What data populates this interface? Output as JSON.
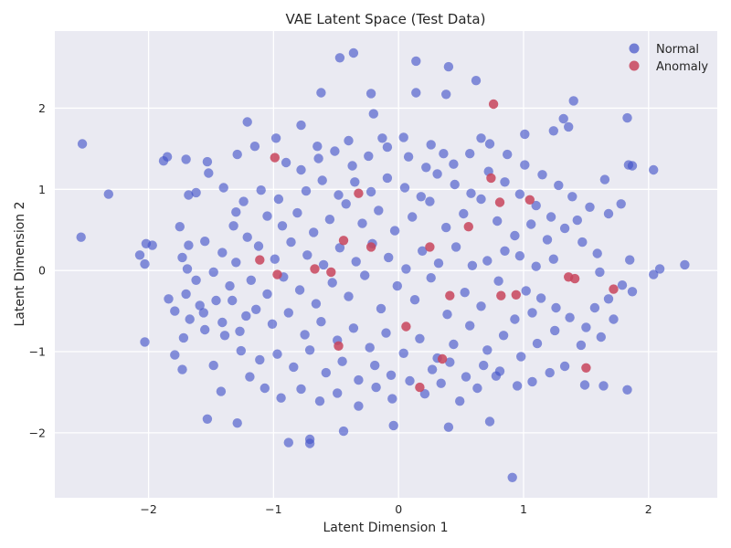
{
  "chart_data": {
    "type": "scatter",
    "title": "VAE Latent Space (Test Data)",
    "xlabel": "Latent Dimension 1",
    "ylabel": "Latent Dimension 2",
    "xlim": [
      -2.75,
      2.55
    ],
    "ylim": [
      -2.8,
      2.95
    ],
    "xticks": [
      -2,
      -1,
      0,
      1,
      2
    ],
    "yticks": [
      -2,
      -1,
      0,
      1,
      2
    ],
    "xtick_labels": [
      "−2",
      "−1",
      "0",
      "1",
      "2"
    ],
    "ytick_labels": [
      "−2",
      "−1",
      "0",
      "1",
      "2"
    ],
    "grid": true,
    "legend_position": "top-right",
    "background_color": "#eaeaf2",
    "series": [
      {
        "name": "Normal",
        "color": "#4050c8",
        "points": [
          [
            -0.47,
            2.62
          ],
          [
            -0.36,
            2.68
          ],
          [
            0.14,
            2.58
          ],
          [
            0.4,
            2.51
          ],
          [
            0.62,
            2.34
          ],
          [
            -0.62,
            2.19
          ],
          [
            -0.22,
            2.18
          ],
          [
            0.14,
            2.19
          ],
          [
            0.38,
            2.17
          ],
          [
            -0.2,
            1.93
          ],
          [
            -2.53,
            1.56
          ],
          [
            -1.21,
            1.83
          ],
          [
            -0.78,
            1.79
          ],
          [
            1.83,
            1.88
          ],
          [
            1.32,
            1.87
          ],
          [
            1.4,
            2.09
          ],
          [
            -2.32,
            0.94
          ],
          [
            -2.54,
            0.41
          ],
          [
            -2.02,
            0.33
          ],
          [
            -1.97,
            0.31
          ],
          [
            -2.07,
            0.19
          ],
          [
            -2.03,
            0.08
          ],
          [
            -2.03,
            -0.88
          ],
          [
            -1.79,
            -1.04
          ],
          [
            -1.73,
            -1.22
          ],
          [
            -1.53,
            -1.83
          ],
          [
            -1.29,
            -1.88
          ],
          [
            -0.88,
            -2.12
          ],
          [
            -0.71,
            -2.08
          ],
          [
            -0.71,
            -2.13
          ],
          [
            -0.44,
            -1.98
          ],
          [
            -0.04,
            -1.91
          ],
          [
            0.4,
            -1.93
          ],
          [
            0.91,
            -2.55
          ],
          [
            0.73,
            -1.86
          ],
          [
            1.83,
            -1.47
          ],
          [
            1.64,
            -1.42
          ],
          [
            1.49,
            -1.41
          ],
          [
            2.29,
            0.07
          ],
          [
            2.09,
            0.02
          ],
          [
            2.04,
            -0.05
          ],
          [
            1.87,
            -0.26
          ],
          [
            2.04,
            1.24
          ],
          [
            1.84,
            1.3
          ],
          [
            1.87,
            1.29
          ],
          [
            1.65,
            1.12
          ],
          [
            1.78,
            0.82
          ],
          [
            1.68,
            0.7
          ],
          [
            1.85,
            0.13
          ],
          [
            1.61,
            -0.02
          ],
          [
            -1.85,
            1.4
          ],
          [
            -1.88,
            1.35
          ],
          [
            -1.7,
            1.37
          ],
          [
            -1.53,
            1.34
          ],
          [
            -1.29,
            1.43
          ],
          [
            -1.15,
            1.53
          ],
          [
            -0.98,
            1.63
          ],
          [
            -0.65,
            1.53
          ],
          [
            -0.4,
            1.6
          ],
          [
            -0.13,
            1.63
          ],
          [
            0.04,
            1.64
          ],
          [
            0.26,
            1.55
          ],
          [
            0.66,
            1.63
          ],
          [
            1.01,
            1.68
          ],
          [
            1.24,
            1.72
          ],
          [
            1.36,
            1.77
          ],
          [
            -1.68,
            0.93
          ],
          [
            -1.62,
            0.96
          ],
          [
            -1.52,
            1.2
          ],
          [
            -1.4,
            1.02
          ],
          [
            -1.24,
            0.85
          ],
          [
            -1.1,
            0.99
          ],
          [
            -0.96,
            0.88
          ],
          [
            -1.75,
            0.54
          ],
          [
            -1.68,
            0.31
          ],
          [
            -1.55,
            0.36
          ],
          [
            -1.41,
            0.22
          ],
          [
            -1.3,
            0.1
          ],
          [
            -1.73,
            0.16
          ],
          [
            -1.69,
            0.02
          ],
          [
            -1.62,
            -0.12
          ],
          [
            -1.48,
            -0.02
          ],
          [
            -1.35,
            -0.19
          ],
          [
            -1.84,
            -0.35
          ],
          [
            -1.79,
            -0.5
          ],
          [
            -1.7,
            -0.29
          ],
          [
            -1.59,
            -0.43
          ],
          [
            -1.46,
            -0.37
          ],
          [
            -1.67,
            -0.6
          ],
          [
            -1.56,
            -0.52
          ],
          [
            -1.41,
            -0.64
          ],
          [
            -1.27,
            -0.75
          ],
          [
            -1.72,
            -0.83
          ],
          [
            -1.55,
            -0.73
          ],
          [
            -1.39,
            -0.8
          ],
          [
            -1.26,
            -0.99
          ],
          [
            -1.11,
            -1.1
          ],
          [
            -1.48,
            -1.17
          ],
          [
            -1.42,
            -1.49
          ],
          [
            -1.19,
            -1.31
          ],
          [
            -1.07,
            -1.45
          ],
          [
            -0.94,
            -1.57
          ],
          [
            -0.78,
            -1.46
          ],
          [
            -0.63,
            -1.61
          ],
          [
            -0.49,
            -1.51
          ],
          [
            -0.32,
            -1.67
          ],
          [
            -0.18,
            -1.44
          ],
          [
            -0.05,
            -1.58
          ],
          [
            0.09,
            -1.36
          ],
          [
            0.21,
            -1.52
          ],
          [
            0.34,
            -1.39
          ],
          [
            0.49,
            -1.61
          ],
          [
            0.63,
            -1.45
          ],
          [
            0.78,
            -1.3
          ],
          [
            0.95,
            -1.42
          ],
          [
            1.07,
            -1.37
          ],
          [
            1.21,
            -1.26
          ],
          [
            1.33,
            -1.18
          ],
          [
            1.46,
            -0.92
          ],
          [
            1.62,
            -0.82
          ],
          [
            1.5,
            -0.7
          ],
          [
            1.37,
            -0.58
          ],
          [
            1.26,
            -0.46
          ],
          [
            1.14,
            -0.34
          ],
          [
            1.02,
            -0.25
          ],
          [
            1.57,
            -0.46
          ],
          [
            1.68,
            -0.35
          ],
          [
            1.79,
            -0.18
          ],
          [
            1.72,
            -0.6
          ],
          [
            1.59,
            0.21
          ],
          [
            1.47,
            0.35
          ],
          [
            1.33,
            0.52
          ],
          [
            1.22,
            0.66
          ],
          [
            1.1,
            0.8
          ],
          [
            0.97,
            0.94
          ],
          [
            1.43,
            0.62
          ],
          [
            1.53,
            0.78
          ],
          [
            1.39,
            0.91
          ],
          [
            1.28,
            1.05
          ],
          [
            1.15,
            1.18
          ],
          [
            1.01,
            1.3
          ],
          [
            0.87,
            1.43
          ],
          [
            0.73,
            1.56
          ],
          [
            0.57,
            1.44
          ],
          [
            0.44,
            1.31
          ],
          [
            -0.9,
            1.33
          ],
          [
            -0.78,
            1.24
          ],
          [
            -0.64,
            1.38
          ],
          [
            -0.51,
            1.47
          ],
          [
            -0.37,
            1.29
          ],
          [
            -0.24,
            1.41
          ],
          [
            -0.09,
            1.52
          ],
          [
            0.08,
            1.4
          ],
          [
            0.22,
            1.27
          ],
          [
            0.36,
            1.44
          ],
          [
            -1.05,
            0.67
          ],
          [
            -0.93,
            0.55
          ],
          [
            -0.81,
            0.71
          ],
          [
            -0.68,
            0.47
          ],
          [
            -0.55,
            0.63
          ],
          [
            -0.42,
            0.82
          ],
          [
            -0.29,
            0.58
          ],
          [
            -0.16,
            0.74
          ],
          [
            -0.03,
            0.49
          ],
          [
            0.11,
            0.66
          ],
          [
            0.25,
            0.85
          ],
          [
            0.38,
            0.53
          ],
          [
            0.52,
            0.7
          ],
          [
            0.66,
            0.88
          ],
          [
            0.79,
            0.61
          ],
          [
            0.93,
            0.43
          ],
          [
            1.06,
            0.57
          ],
          [
            1.19,
            0.38
          ],
          [
            0.85,
            0.24
          ],
          [
            0.71,
            0.12
          ],
          [
            -1.12,
            0.3
          ],
          [
            -0.99,
            0.14
          ],
          [
            -0.86,
            0.35
          ],
          [
            -0.73,
            0.19
          ],
          [
            -0.6,
            0.07
          ],
          [
            -0.47,
            0.28
          ],
          [
            -0.34,
            0.11
          ],
          [
            -0.21,
            0.33
          ],
          [
            -0.08,
            0.16
          ],
          [
            0.06,
            0.02
          ],
          [
            0.19,
            0.24
          ],
          [
            0.32,
            0.09
          ],
          [
            0.46,
            0.29
          ],
          [
            0.59,
            0.06
          ],
          [
            0.97,
            0.18
          ],
          [
            1.1,
            0.05
          ],
          [
            1.24,
            0.14
          ],
          [
            -1.18,
            -0.12
          ],
          [
            -1.05,
            -0.29
          ],
          [
            -0.92,
            -0.08
          ],
          [
            -0.79,
            -0.24
          ],
          [
            -0.66,
            -0.41
          ],
          [
            -0.53,
            -0.15
          ],
          [
            -0.4,
            -0.32
          ],
          [
            -0.27,
            -0.06
          ],
          [
            -0.14,
            -0.47
          ],
          [
            -0.01,
            -0.19
          ],
          [
            0.13,
            -0.36
          ],
          [
            0.26,
            -0.09
          ],
          [
            0.39,
            -0.54
          ],
          [
            0.53,
            -0.27
          ],
          [
            0.66,
            -0.44
          ],
          [
            0.8,
            -0.13
          ],
          [
            0.93,
            -0.6
          ],
          [
            1.07,
            -0.52
          ],
          [
            -1.14,
            -0.48
          ],
          [
            -1.01,
            -0.66
          ],
          [
            -0.88,
            -0.52
          ],
          [
            -0.75,
            -0.79
          ],
          [
            -0.62,
            -0.63
          ],
          [
            -0.49,
            -0.86
          ],
          [
            -0.36,
            -0.71
          ],
          [
            -0.23,
            -0.95
          ],
          [
            -0.1,
            -0.77
          ],
          [
            0.04,
            -1.02
          ],
          [
            0.17,
            -0.84
          ],
          [
            0.31,
            -1.08
          ],
          [
            0.44,
            -0.91
          ],
          [
            0.57,
            -0.68
          ],
          [
            0.71,
            -0.98
          ],
          [
            0.84,
            -0.8
          ],
          [
            0.98,
            -1.06
          ],
          [
            1.11,
            -0.9
          ],
          [
            1.25,
            -0.74
          ],
          [
            -0.97,
            -1.03
          ],
          [
            -0.84,
            -1.19
          ],
          [
            -0.71,
            -0.98
          ],
          [
            -0.58,
            -1.26
          ],
          [
            -0.45,
            -1.12
          ],
          [
            -0.32,
            -1.35
          ],
          [
            -0.19,
            -1.17
          ],
          [
            -0.06,
            -1.29
          ],
          [
            0.27,
            -1.22
          ],
          [
            0.41,
            -1.13
          ],
          [
            0.54,
            -1.31
          ],
          [
            0.68,
            -1.17
          ],
          [
            0.81,
            -1.24
          ],
          [
            -0.35,
            1.09
          ],
          [
            -0.22,
            0.97
          ],
          [
            -0.09,
            1.14
          ],
          [
            0.05,
            1.02
          ],
          [
            0.18,
            0.91
          ],
          [
            0.31,
            1.19
          ],
          [
            0.45,
            1.06
          ],
          [
            0.58,
            0.95
          ],
          [
            0.72,
            1.22
          ],
          [
            0.85,
            1.09
          ],
          [
            -0.74,
            0.98
          ],
          [
            -0.61,
            1.11
          ],
          [
            -0.48,
            0.93
          ],
          [
            -1.32,
            0.55
          ],
          [
            -1.21,
            0.41
          ],
          [
            -1.33,
            -0.37
          ],
          [
            -1.22,
            -0.56
          ],
          [
            -1.3,
            0.72
          ]
        ]
      },
      {
        "name": "Anomaly",
        "color": "#c8445c",
        "points": [
          [
            0.76,
            2.05
          ],
          [
            -0.99,
            1.39
          ],
          [
            0.74,
            1.14
          ],
          [
            1.05,
            0.87
          ],
          [
            -1.11,
            0.13
          ],
          [
            0.81,
            0.84
          ],
          [
            -0.97,
            -0.05
          ],
          [
            -0.44,
            0.37
          ],
          [
            -0.22,
            0.29
          ],
          [
            0.25,
            0.29
          ],
          [
            0.82,
            -0.31
          ],
          [
            1.36,
            -0.08
          ],
          [
            1.41,
            -0.1
          ],
          [
            1.72,
            -0.23
          ],
          [
            1.5,
            -1.2
          ],
          [
            0.17,
            -1.44
          ],
          [
            0.35,
            -1.09
          ],
          [
            -0.48,
            -0.93
          ],
          [
            0.06,
            -0.69
          ],
          [
            -0.54,
            -0.02
          ],
          [
            0.41,
            -0.31
          ],
          [
            -0.32,
            0.95
          ],
          [
            -0.67,
            0.02
          ],
          [
            0.94,
            -0.3
          ],
          [
            0.56,
            0.54
          ]
        ]
      }
    ]
  }
}
